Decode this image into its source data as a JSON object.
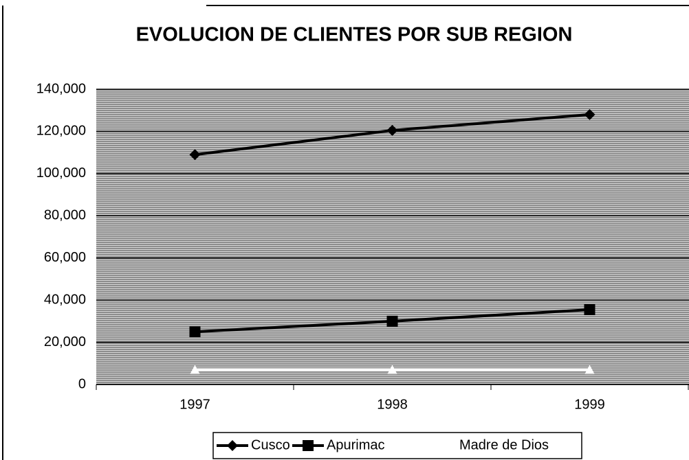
{
  "chart_data": {
    "type": "line",
    "title": "EVOLUCION DE CLIENTES POR SUB REGION",
    "categories": [
      "1997",
      "1998",
      "1999"
    ],
    "series": [
      {
        "name": "Cusco",
        "color": "#000000",
        "marker": "diamond",
        "values": [
          109000,
          120500,
          128000
        ]
      },
      {
        "name": "Apurimac",
        "color": "#000000",
        "marker": "square",
        "values": [
          25000,
          30000,
          35500
        ]
      },
      {
        "name": "Madre de Dios",
        "color": "#ffffff",
        "marker": "triangle",
        "values": [
          7000,
          7000,
          7000
        ]
      }
    ],
    "ylim": [
      0,
      140000
    ],
    "yticks": [
      0,
      {
        "value": 20000,
        "label": "20,000"
      },
      {
        "value": 40000,
        "label": "40,000"
      },
      {
        "value": 60000,
        "label": "60,000"
      },
      {
        "value": 80000,
        "label": "80,000"
      },
      {
        "value": 100000,
        "label": "100,000"
      },
      {
        "value": 120000,
        "label": "120,000"
      },
      {
        "value": 140000,
        "label": "140,000"
      }
    ],
    "grid": true,
    "legend": "bottom"
  }
}
